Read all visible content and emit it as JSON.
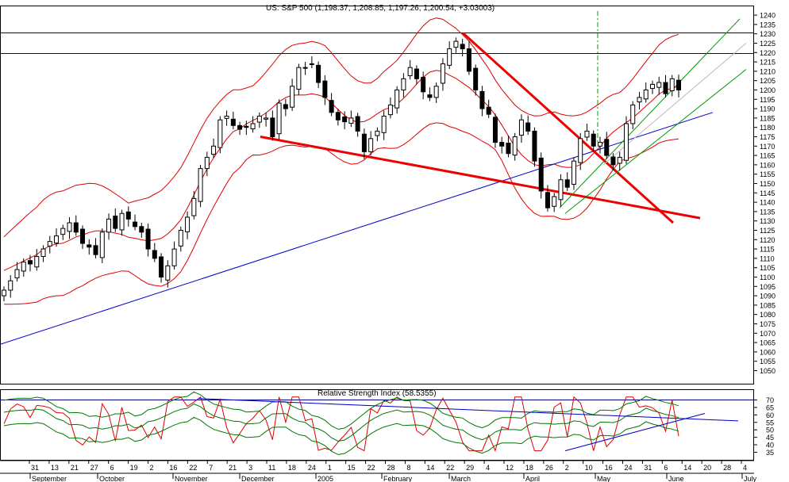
{
  "chart_data": [
    {
      "type": "candlestick",
      "title": "US: S&P 500 (1,198.37, 1,208.85, 1,197.26, 1,200.54, +3.03003)",
      "ylim": [
        1043,
        1243
      ],
      "y_ticks": [
        1050,
        1055,
        1060,
        1065,
        1070,
        1075,
        1080,
        1085,
        1090,
        1095,
        1100,
        1105,
        1110,
        1115,
        1120,
        1125,
        1130,
        1135,
        1140,
        1145,
        1150,
        1155,
        1160,
        1165,
        1170,
        1175,
        1180,
        1185,
        1190,
        1195,
        1200,
        1205,
        1210,
        1215,
        1220,
        1225,
        1230,
        1235,
        1240
      ],
      "x_tick_labels": [
        "31",
        "13",
        "21",
        "27",
        "6",
        "19",
        "2",
        "16",
        "22",
        "7",
        "21",
        "3",
        "11",
        "18",
        "24",
        "1",
        "15",
        "22",
        "28",
        "8",
        "14",
        "22",
        "29",
        "4",
        "12",
        "18",
        "26",
        "2",
        "10",
        "16",
        "24",
        "31",
        "6",
        "14",
        "20",
        "28",
        "4"
      ],
      "month_labels": [
        "September",
        "October",
        "November",
        "December",
        "2005",
        "February",
        "March",
        "April",
        "May",
        "June",
        "July"
      ],
      "horizontal_lines": [
        1230.5,
        1219.5
      ],
      "series": [
        {
          "closes": [
            1093,
            1098,
            1104,
            1108,
            1107,
            1111,
            1115,
            1119,
            1122,
            1126,
            1129,
            1124,
            1118,
            1116,
            1112,
            1124,
            1131,
            1126,
            1134,
            1131,
            1127,
            1124,
            1115,
            1110,
            1100,
            1106,
            1115,
            1125,
            1132,
            1142,
            1158,
            1164,
            1170,
            1184,
            1186,
            1181,
            1179,
            1180,
            1182,
            1186,
            1185,
            1175,
            1193,
            1190,
            1202,
            1212,
            1212,
            1214,
            1204,
            1196,
            1188,
            1184,
            1183,
            1185,
            1178,
            1167,
            1174,
            1178,
            1186,
            1192,
            1200,
            1206,
            1212,
            1206,
            1199,
            1196,
            1202,
            1214,
            1222,
            1226,
            1222,
            1210,
            1200,
            1190,
            1187,
            1172,
            1170,
            1166,
            1175,
            1184,
            1178,
            1162,
            1146,
            1137,
            1143,
            1152,
            1148,
            1162,
            1174,
            1178,
            1170,
            1172,
            1165,
            1160,
            1164,
            1182,
            1192,
            1196,
            1200,
            1203,
            1204,
            1198,
            1206,
            1200
          ]
        }
      ],
      "rsi_panel": {
        "title": "Relative Strength Index (58.5355)",
        "ylim": [
          31,
          74
        ],
        "y_ticks": [
          35,
          40,
          45,
          50,
          55,
          60,
          65,
          70
        ],
        "horizontal_line": 70
      }
    }
  ]
}
